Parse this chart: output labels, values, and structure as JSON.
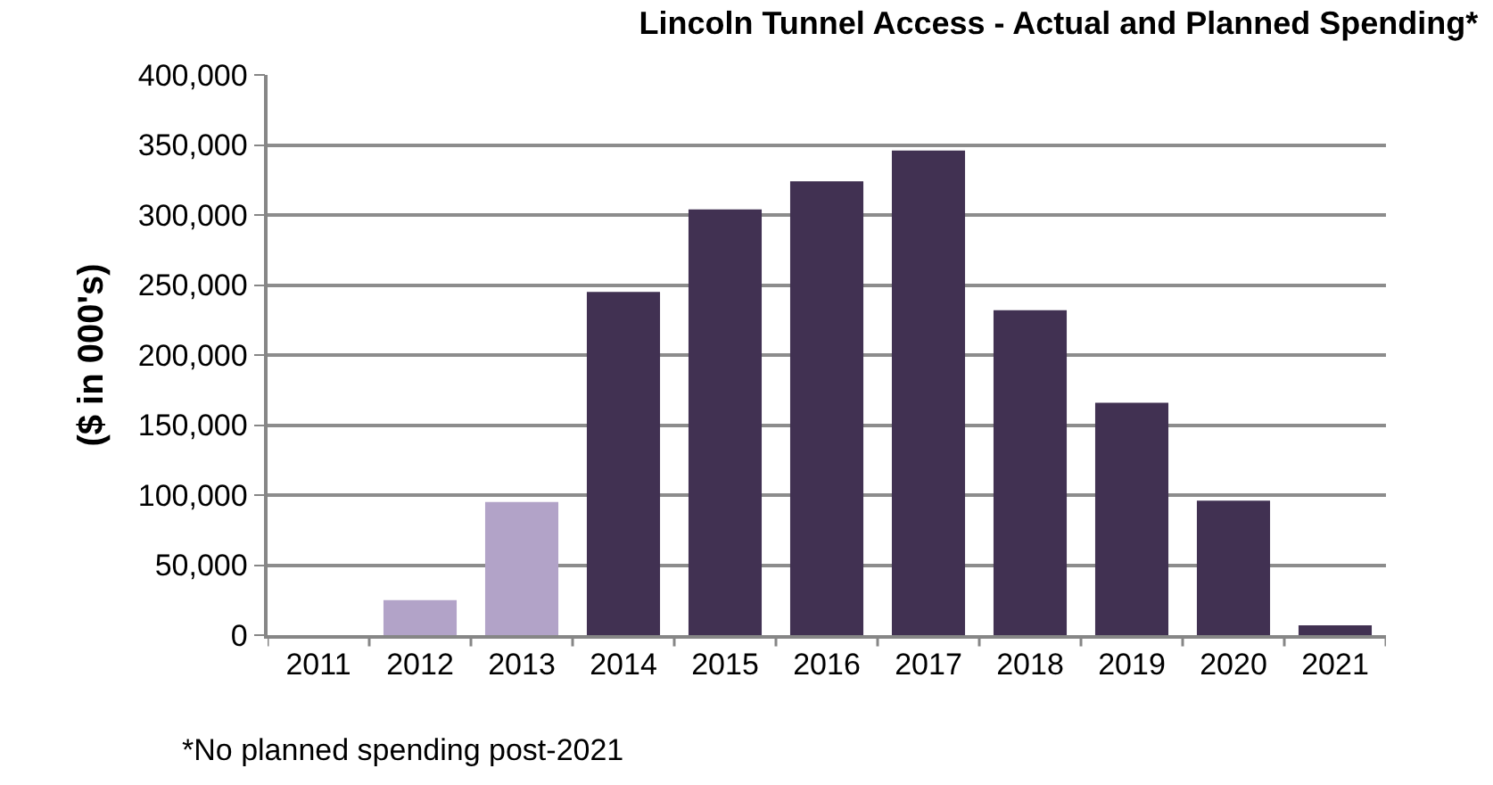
{
  "chart_data": {
    "type": "bar",
    "title": "Lincoln Tunnel Access - Actual and Planned Spending*",
    "ylabel": "($ in 000's)",
    "categories": [
      "2011",
      "2012",
      "2013",
      "2014",
      "2015",
      "2016",
      "2017",
      "2018",
      "2019",
      "2020",
      "2021"
    ],
    "values": [
      0,
      25000,
      95000,
      245000,
      304000,
      324000,
      346000,
      232000,
      166000,
      96000,
      7000
    ],
    "colors": [
      "#b2a3c8",
      "#b2a3c8",
      "#b2a3c8",
      "#413152",
      "#413152",
      "#413152",
      "#413152",
      "#413152",
      "#413152",
      "#413152",
      "#413152"
    ],
    "ylim": [
      0,
      400000
    ],
    "yticks": [
      {
        "value": 0,
        "label": "0"
      },
      {
        "value": 50000,
        "label": "50,000"
      },
      {
        "value": 100000,
        "label": "100,000"
      },
      {
        "value": 150000,
        "label": "150,000"
      },
      {
        "value": 200000,
        "label": "200,000"
      },
      {
        "value": 250000,
        "label": "250,000"
      },
      {
        "value": 300000,
        "label": "300,000"
      },
      {
        "value": 350000,
        "label": "350,000"
      },
      {
        "value": 400000,
        "label": "400,000"
      }
    ],
    "grid": "y",
    "annotations": [
      "*No planned spending post-2021"
    ]
  }
}
